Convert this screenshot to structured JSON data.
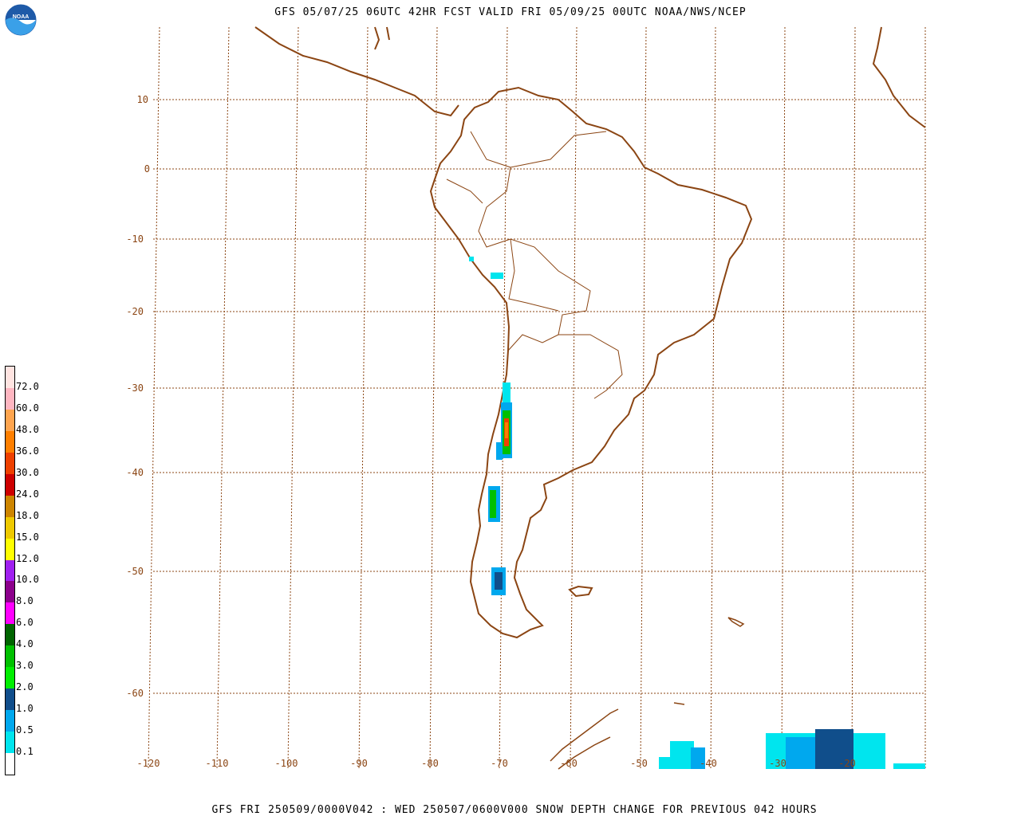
{
  "header": {
    "title": "GFS 05/07/25 06UTC 42HR FCST VALID FRI 05/09/25 00UTC NOAA/NWS/NCEP"
  },
  "footer": {
    "text": "GFS FRI 250509/0000V042 : WED 250507/0600V000 SNOW DEPTH CHANGE FOR PREVIOUS 042 HOURS"
  },
  "logo": {
    "icon": "noaa-logo",
    "text": "NOAA"
  },
  "axes": {
    "lat_labels": [
      "10",
      "0",
      "-10",
      "-20",
      "-30",
      "-40",
      "-50",
      "-60"
    ],
    "lon_labels": [
      "-120",
      "-110",
      "-100",
      "-90",
      "-80",
      "-70",
      "-60",
      "-50",
      "-40",
      "-30",
      "-20"
    ]
  },
  "legend": {
    "levels": [
      {
        "label": "",
        "color": "#ffffff"
      },
      {
        "label": "0.1",
        "color": "#00e5ee"
      },
      {
        "label": "0.5",
        "color": "#00a8ee"
      },
      {
        "label": "1.0",
        "color": "#104e8b"
      },
      {
        "label": "2.0",
        "color": "#00ee00"
      },
      {
        "label": "3.0",
        "color": "#00c000"
      },
      {
        "label": "4.0",
        "color": "#006400"
      },
      {
        "label": "6.0",
        "color": "#ff00ff"
      },
      {
        "label": "8.0",
        "color": "#8b008b"
      },
      {
        "label": "10.0",
        "color": "#a020f0"
      },
      {
        "label": "12.0",
        "color": "#ffff00"
      },
      {
        "label": "15.0",
        "color": "#eec900"
      },
      {
        "label": "18.0",
        "color": "#cd8500"
      },
      {
        "label": "24.0",
        "color": "#cd0000"
      },
      {
        "label": "30.0",
        "color": "#ee4000"
      },
      {
        "label": "36.0",
        "color": "#ff7f00"
      },
      {
        "label": "48.0",
        "color": "#ffa54f"
      },
      {
        "label": "60.0",
        "color": "#ffb6c1"
      },
      {
        "label": "72.0",
        "color": "#ffe4e1"
      }
    ]
  },
  "colors": {
    "coastline": "#8b4513",
    "grid": "#8b4513",
    "borders": "#8b4513"
  }
}
